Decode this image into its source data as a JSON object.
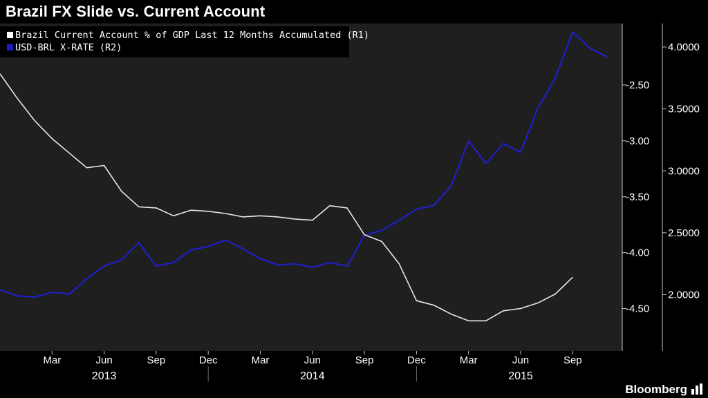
{
  "header": {
    "title": "Brazil FX Slide vs. Current Account"
  },
  "footer": {
    "brand": "Bloomberg"
  },
  "chart_data": {
    "type": "line",
    "title": "Brazil FX Slide vs. Current Account",
    "x_months": [
      "2012-12",
      "2013-01",
      "2013-02",
      "2013-03",
      "2013-04",
      "2013-05",
      "2013-06",
      "2013-07",
      "2013-08",
      "2013-09",
      "2013-10",
      "2013-11",
      "2013-12",
      "2014-01",
      "2014-02",
      "2014-03",
      "2014-04",
      "2014-05",
      "2014-06",
      "2014-07",
      "2014-08",
      "2014-09",
      "2014-10",
      "2014-11",
      "2014-12",
      "2015-01",
      "2015-02",
      "2015-03",
      "2015-04",
      "2015-05",
      "2015-06",
      "2015-07",
      "2015-08",
      "2015-09",
      "2015-10",
      "2015-11"
    ],
    "x_tick_labels": [
      "Mar",
      "Jun",
      "Sep",
      "Dec",
      "Mar",
      "Jun",
      "Sep",
      "Dec",
      "Mar",
      "Jun",
      "Sep"
    ],
    "x_tick_months": [
      "2013-03",
      "2013-06",
      "2013-09",
      "2013-12",
      "2014-03",
      "2014-06",
      "2014-09",
      "2014-12",
      "2015-03",
      "2015-06",
      "2015-09"
    ],
    "year_labels": [
      {
        "label": "2013",
        "month": "2013-06"
      },
      {
        "label": "2014",
        "month": "2014-06"
      },
      {
        "label": "2015",
        "month": "2015-06"
      }
    ],
    "year_separators": [
      "2013-12",
      "2014-12"
    ],
    "axes": {
      "left": {
        "range": [
          -4.88,
          -1.95
        ],
        "ticks": [
          "-2.50",
          "-3.00",
          "-3.50",
          "-4.00",
          "-4.50"
        ],
        "tick_values": [
          -2.5,
          -3.0,
          -3.5,
          -4.0,
          -4.5
        ]
      },
      "right": {
        "range": [
          1.545,
          4.19
        ],
        "ticks": [
          "4.0000",
          "3.5000",
          "3.0000",
          "2.5000",
          "2.0000"
        ],
        "tick_values": [
          4.0,
          3.5,
          3.0,
          2.5,
          2.0
        ]
      }
    },
    "grid": false,
    "legend_position": "top-left",
    "series": [
      {
        "name": "Brazil Current Account % of GDP Last 12 Months Accumulated  (R1)",
        "axis": "left",
        "color": "#e8e8e8",
        "legend_swatch": "#ffffff",
        "values": [
          -2.4,
          -2.62,
          -2.82,
          -2.98,
          -3.11,
          -3.24,
          -3.22,
          -3.45,
          -3.59,
          -3.6,
          -3.67,
          -3.62,
          -3.63,
          -3.65,
          -3.68,
          -3.67,
          -3.68,
          -3.7,
          -3.71,
          -3.58,
          -3.6,
          -3.84,
          -3.9,
          -4.1,
          -4.43,
          -4.47,
          -4.55,
          -4.61,
          -4.61,
          -4.52,
          -4.5,
          -4.45,
          -4.37,
          -4.22,
          null,
          null
        ]
      },
      {
        "name": "USD-BRL X-RATE  (R2)",
        "axis": "right",
        "color": "#1f1fd6",
        "legend_swatch": "#1a1ad0",
        "values": [
          2.04,
          1.99,
          1.98,
          2.02,
          2.005,
          2.13,
          2.23,
          2.28,
          2.42,
          2.23,
          2.26,
          2.36,
          2.39,
          2.44,
          2.37,
          2.29,
          2.24,
          2.25,
          2.22,
          2.26,
          2.23,
          2.48,
          2.52,
          2.6,
          2.69,
          2.72,
          2.88,
          3.24,
          3.06,
          3.22,
          3.15,
          3.51,
          3.75,
          4.12,
          3.99,
          3.92
        ]
      }
    ]
  }
}
